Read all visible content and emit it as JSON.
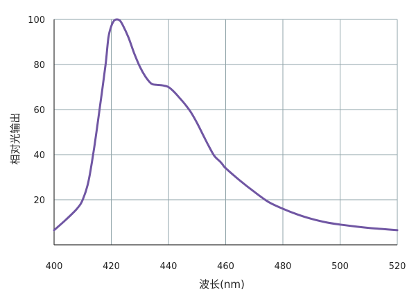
{
  "chart_data": {
    "type": "line",
    "title": "",
    "xlabel": "波长(nm)",
    "ylabel": "相对光输出",
    "xlim": [
      400,
      520
    ],
    "ylim": [
      0,
      100
    ],
    "x_ticks": [
      400,
      420,
      440,
      460,
      480,
      500,
      520
    ],
    "y_ticks": [
      20,
      40,
      60,
      80,
      100
    ],
    "x_tick_labels": [
      "400",
      "420",
      "440",
      "460",
      "480",
      "500",
      "520"
    ],
    "y_tick_labels": [
      "20",
      "40",
      "60",
      "80",
      "100"
    ],
    "grid": true,
    "colors": {
      "line": "#7056a3",
      "grid": "#8fa3a8",
      "axis": "#333333"
    },
    "series": [
      {
        "values_x": [
          400,
          404,
          408,
          410,
          412,
          414,
          416,
          418,
          419,
          420,
          421,
          422,
          423,
          424,
          426,
          428,
          430,
          432,
          434,
          436,
          438,
          440,
          442,
          444,
          446,
          448,
          450,
          452,
          454,
          456,
          458,
          459,
          460,
          465,
          470,
          475,
          480,
          485,
          490,
          495,
          500,
          505,
          510,
          515,
          520
        ],
        "values_y": [
          6.5,
          11,
          16,
          20,
          28,
          43,
          61,
          80,
          92,
          97,
          99.5,
          100,
          99.5,
          97.5,
          92,
          85,
          79,
          74.5,
          71.5,
          71,
          70.7,
          70,
          67.8,
          65,
          62,
          58.5,
          54,
          49,
          44,
          39.5,
          37,
          35.5,
          34,
          28.5,
          23.5,
          19,
          16,
          13.5,
          11.5,
          10,
          9,
          8.2,
          7.5,
          7,
          6.5
        ]
      }
    ]
  }
}
